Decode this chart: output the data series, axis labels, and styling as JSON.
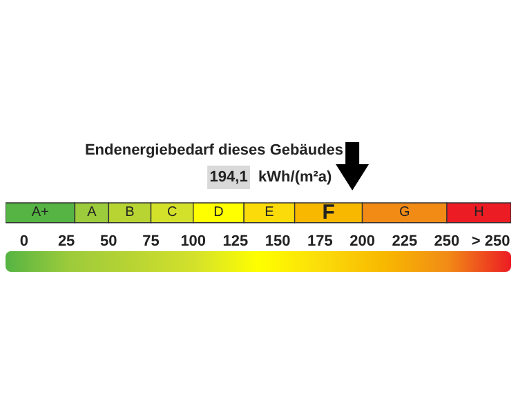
{
  "chart_data": {
    "type": "bar",
    "orientation": "horizontal",
    "title": "Endenergiebedarf dieses Gebäudes",
    "categories": [
      null
    ],
    "series": [
      {
        "name": "A+",
        "color": "#55b443",
        "values": [
          41
        ],
        "base": [
          -11
        ]
      },
      {
        "name": "A",
        "color": "#9ccb3b",
        "values": [
          20
        ],
        "base": [
          30
        ]
      },
      {
        "name": "B",
        "color": "#b8d433",
        "values": [
          25
        ],
        "base": [
          50
        ]
      },
      {
        "name": "C",
        "color": "#d4e12b",
        "values": [
          25
        ],
        "base": [
          75
        ]
      },
      {
        "name": "D",
        "color": "#ffff00",
        "values": [
          30
        ],
        "base": [
          100
        ]
      },
      {
        "name": "E",
        "color": "#fbdc0a",
        "values": [
          30
        ],
        "base": [
          130
        ]
      },
      {
        "name": "F",
        "color": "#f8b800",
        "values": [
          40
        ],
        "base": [
          160
        ]
      },
      {
        "name": "G",
        "color": "#f18b16",
        "values": [
          50
        ],
        "base": [
          200
        ]
      },
      {
        "name": "H",
        "color": "#ec1c24",
        "values": [
          38
        ],
        "base": [
          250
        ]
      }
    ],
    "xlim": [
      -11,
      288
    ],
    "xticks": [
      0,
      25,
      50,
      75,
      100,
      125,
      150,
      175,
      200,
      225,
      250,
      {
        "value": 276,
        "label": "> 250"
      }
    ],
    "annotations": [
      "194,1",
      "kWh/(m²a)"
    ],
    "grid": false,
    "legend": false
  }
}
